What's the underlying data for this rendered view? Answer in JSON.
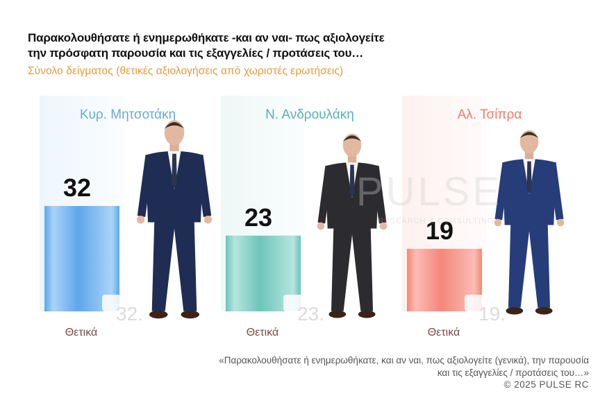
{
  "title_line1": "Παρακολουθήσατε ή ενημερωθήκατε -και αν ναι- πως αξιολογείτε",
  "title_line2": "την πρόσφατη παρουσία και τις εξαγγελίες / προτάσεις του…",
  "subtitle": "Σύνολο δείγματος  (θετικές αξιολογήσεις από χωριστές ερωτήσεις)",
  "watermark": {
    "brand": "PULSE",
    "tagline": "RESEARCH & CONSULTING"
  },
  "footer": {
    "question_line1": "«Παρακολουθήσατε ή ενημερωθήκατε, και αν ναι, πως αξιολογείτε (γενικά), την παρουσία",
    "question_line2": "και τις εξαγγελίες / προτάσεις του…»",
    "copyright": "©  2025  PULSE RC"
  },
  "colors": {
    "text_dark": "#111111",
    "subtitle": "#e39b3f",
    "category_label": "#7a4a4a",
    "ghost_value": "#dcdcdc"
  },
  "chart_data": {
    "type": "bar",
    "ylim": [
      0,
      60
    ],
    "panels": [
      {
        "name": "Κυρ. Μητσοτάκη",
        "category": "Θετικά",
        "value": 32,
        "ghost_label": "32.",
        "bar_color_light": "#a9d3f7",
        "bar_color_dark": "#5ea7ea",
        "bg_color": "#eef6fd",
        "name_color": "#6aa8d9"
      },
      {
        "name": "Ν. Ανδρουλάκη",
        "category": "Θετικά",
        "value": 23,
        "ghost_label": "23.",
        "bar_color_light": "#b5e5de",
        "bar_color_dark": "#6dc5ba",
        "bg_color": "#eef8f7",
        "name_color": "#5aaeb1"
      },
      {
        "name": "Αλ. Τσίπρα",
        "category": "Θετικά",
        "value": 19,
        "ghost_label": "19.",
        "bar_color_light": "#fbbcb4",
        "bar_color_dark": "#f3877b",
        "bg_color": "#fdf1ef",
        "name_color": "#ef7b6e"
      }
    ]
  }
}
